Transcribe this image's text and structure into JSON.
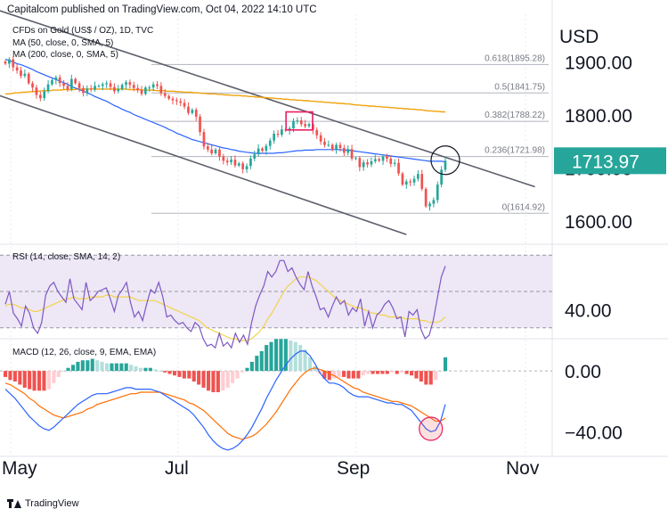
{
  "header": {
    "publisher": "Capitalcom published on TradingView.com, Oct 04, 2022 14:10 UTC"
  },
  "footer": {
    "brand": "TradingView"
  },
  "colors": {
    "up": "#26a69a",
    "down": "#ef5350",
    "ma50": "#2962ff",
    "ma200": "#f0a20c",
    "channel": "#5d606b",
    "rsi": "#7e57c2",
    "rsi_ma": "#f2d349",
    "rsi_band": "#ede7f6",
    "macd": "#2962ff",
    "signal": "#ff6d00",
    "fib": "#b2b5be",
    "highlight": "#e91e63",
    "price_tag": "#26a69a"
  },
  "chart_data": [
    {
      "type": "candlestick",
      "title": "CFDs on Gold (US$ / OZ), 1D, TVC",
      "legend": [
        "MA (50, close, 0, SMA, 5)",
        "MA (200, close, 0, SMA, 5)"
      ],
      "currency_label": "USD",
      "x_ticks": [
        "May",
        "Jul",
        "Sep",
        "Nov"
      ],
      "y_ticks": [
        "1900.00",
        "1800.00",
        "1700.00",
        "1600.00"
      ],
      "ylim": [
        1560,
        1990
      ],
      "last_price_label": "1713.97",
      "fib_levels": [
        {
          "label": "0.618(1895.28)",
          "value": 1895.28
        },
        {
          "label": "0.5(1841.75)",
          "value": 1841.75
        },
        {
          "label": "0.382(1788.22)",
          "value": 1788.22
        },
        {
          "label": "0.236(1721.98)",
          "value": 1721.98
        },
        {
          "label": "0(1614.92)",
          "value": 1614.92
        }
      ],
      "close": [
        1897,
        1905,
        1890,
        1884,
        1874,
        1878,
        1860,
        1852,
        1838,
        1832,
        1845,
        1858,
        1866,
        1871,
        1860,
        1855,
        1849,
        1868,
        1860,
        1851,
        1842,
        1850,
        1848,
        1855,
        1855,
        1858,
        1860,
        1853,
        1845,
        1849,
        1857,
        1862,
        1857,
        1851,
        1847,
        1840,
        1852,
        1852,
        1858,
        1855,
        1841,
        1836,
        1831,
        1828,
        1826,
        1823,
        1816,
        1804,
        1810,
        1797,
        1768,
        1741,
        1735,
        1728,
        1735,
        1722,
        1714,
        1711,
        1716,
        1705,
        1709,
        1698,
        1704,
        1718,
        1726,
        1737,
        1733,
        1742,
        1752,
        1765,
        1763,
        1773,
        1771,
        1775,
        1789,
        1790,
        1783,
        1779,
        1783,
        1772,
        1762,
        1750,
        1744,
        1744,
        1735,
        1744,
        1738,
        1729,
        1736,
        1718,
        1719,
        1702,
        1711,
        1707,
        1713,
        1717,
        1714,
        1722,
        1718,
        1708,
        1710,
        1690,
        1669,
        1675,
        1673,
        1680,
        1689,
        1661,
        1628,
        1633,
        1640,
        1669,
        1697,
        1714
      ],
      "ma50": [
        1905,
        1903,
        1900,
        1897,
        1895,
        1892,
        1889,
        1886,
        1882,
        1879,
        1876,
        1873,
        1870,
        1867,
        1864,
        1861,
        1858,
        1854,
        1851,
        1848,
        1845,
        1842,
        1839,
        1835,
        1832,
        1829,
        1826,
        1822,
        1818,
        1815,
        1811,
        1808,
        1805,
        1801,
        1798,
        1795,
        1792,
        1789,
        1786,
        1783,
        1780,
        1777,
        1773,
        1770,
        1766,
        1763,
        1760,
        1757,
        1754,
        1752,
        1750,
        1748,
        1746,
        1744,
        1742,
        1740,
        1738,
        1737,
        1735,
        1734,
        1732,
        1731,
        1730,
        1729,
        1728,
        1728,
        1728,
        1728,
        1728,
        1728,
        1729,
        1729,
        1730,
        1731,
        1732,
        1733,
        1733,
        1734,
        1734,
        1734,
        1735,
        1735,
        1735,
        1735,
        1735,
        1735,
        1735,
        1734,
        1734,
        1733,
        1732,
        1731,
        1730,
        1729,
        1728,
        1727,
        1726,
        1725,
        1724,
        1723,
        1722,
        1721,
        1720,
        1719,
        1718,
        1717,
        1716,
        1715,
        1714,
        1713,
        1713,
        1713,
        1713,
        1712
      ],
      "ma200": [
        1840,
        1840,
        1841,
        1842,
        1842,
        1843,
        1843,
        1844,
        1844,
        1845,
        1845,
        1846,
        1846,
        1846,
        1847,
        1847,
        1847,
        1848,
        1848,
        1848,
        1848,
        1849,
        1849,
        1849,
        1849,
        1849,
        1849,
        1849,
        1849,
        1849,
        1849,
        1849,
        1849,
        1849,
        1849,
        1849,
        1848,
        1848,
        1848,
        1848,
        1847,
        1847,
        1847,
        1847,
        1846,
        1846,
        1846,
        1845,
        1845,
        1845,
        1844,
        1844,
        1843,
        1843,
        1843,
        1842,
        1842,
        1841,
        1841,
        1840,
        1840,
        1840,
        1839,
        1839,
        1838,
        1838,
        1837,
        1837,
        1837,
        1836,
        1836,
        1835,
        1835,
        1834,
        1834,
        1833,
        1833,
        1832,
        1832,
        1831,
        1831,
        1830,
        1830,
        1829,
        1829,
        1828,
        1828,
        1827,
        1827,
        1826,
        1826,
        1825,
        1825,
        1824,
        1824,
        1823,
        1823,
        1822,
        1822,
        1821,
        1821,
        1820,
        1819,
        1819,
        1818,
        1818,
        1817,
        1817,
        1816,
        1816,
        1815,
        1815,
        1814,
        1814,
        1813,
        1813,
        1812,
        1812,
        1811,
        1811,
        1810,
        1810,
        1809,
        1808,
        1808,
        1807,
        1807,
        1806,
        1806
      ]
    },
    {
      "type": "line",
      "title": "RSI (14, close, SMA, 14, 2)",
      "y_ticks": [
        "40.00"
      ],
      "bands": [
        30,
        50,
        70
      ],
      "ylim": [
        25,
        75
      ],
      "rsi": [
        43,
        50,
        38,
        35,
        31,
        42,
        38,
        30,
        27,
        33,
        48,
        53,
        55,
        50,
        47,
        44,
        57,
        46,
        43,
        40,
        55,
        45,
        47,
        50,
        51,
        52,
        46,
        39,
        48,
        51,
        55,
        44,
        36,
        39,
        34,
        43,
        51,
        49,
        55,
        47,
        36,
        37,
        34,
        32,
        33,
        30,
        28,
        33,
        31,
        24,
        20,
        21,
        19,
        27,
        20,
        22,
        19,
        27,
        22,
        26,
        21,
        33,
        42,
        48,
        53,
        61,
        58,
        61,
        67,
        67,
        61,
        63,
        58,
        54,
        51,
        61,
        53,
        47,
        40,
        41,
        36,
        42,
        47,
        43,
        45,
        37,
        41,
        39,
        46,
        31,
        39,
        30,
        37,
        39,
        43,
        45,
        41,
        35,
        36,
        25,
        39,
        37,
        40,
        29,
        24,
        26,
        34,
        46,
        58,
        64
      ],
      "rsi_ma": [
        42,
        43,
        43,
        42,
        41,
        41,
        40,
        39,
        39,
        40,
        41,
        42,
        43,
        44,
        45,
        46,
        46,
        47,
        46,
        46,
        46,
        47,
        47,
        47,
        47,
        48,
        48,
        47,
        47,
        47,
        47,
        47,
        46,
        45,
        45,
        45,
        45,
        45,
        44,
        43,
        42,
        41,
        40,
        39,
        38,
        37,
        36,
        35,
        34,
        32,
        30,
        29,
        28,
        27,
        26,
        25,
        24,
        24,
        23,
        23,
        23,
        24,
        26,
        28,
        31,
        35,
        38,
        42,
        46,
        50,
        53,
        55,
        57,
        58,
        58,
        58,
        57,
        56,
        54,
        52,
        50,
        48,
        46,
        45,
        44,
        43,
        42,
        41,
        41,
        40,
        39,
        38,
        38,
        37,
        37,
        36,
        36,
        36,
        36,
        35,
        35,
        35,
        35,
        34,
        34,
        33,
        33,
        33,
        34,
        36
      ]
    },
    {
      "type": "line",
      "title": "MACD (12, 26, close, 9, EMA, EMA)",
      "y_ticks": [
        "0.00",
        "−40.00"
      ],
      "ylim": [
        -55,
        20
      ],
      "macd": [
        -12,
        -15,
        -18,
        -22,
        -26,
        -30,
        -33,
        -36,
        -38,
        -39,
        -37,
        -34,
        -31,
        -28,
        -25,
        -22,
        -20,
        -18,
        -16,
        -15,
        -15,
        -15,
        -14,
        -13,
        -12,
        -11,
        -11,
        -12,
        -12,
        -12,
        -12,
        -13,
        -14,
        -16,
        -18,
        -20,
        -22,
        -24,
        -26,
        -29,
        -33,
        -37,
        -42,
        -46,
        -49,
        -51,
        -52,
        -51,
        -49,
        -46,
        -42,
        -37,
        -31,
        -25,
        -18,
        -12,
        -6,
        -1,
        4,
        8,
        11,
        13,
        13,
        10,
        5,
        -1,
        -5,
        -8,
        -8,
        -9,
        -11,
        -14,
        -16,
        -17,
        -17,
        -17,
        -18,
        -19,
        -20,
        -21,
        -21,
        -22,
        -22,
        -24,
        -26,
        -30,
        -34,
        -38,
        -40,
        -39,
        -33,
        -22
      ],
      "signal": [
        -8,
        -9,
        -11,
        -13,
        -15,
        -18,
        -20,
        -23,
        -25,
        -27,
        -29,
        -30,
        -31,
        -30,
        -29,
        -28,
        -27,
        -25,
        -24,
        -22,
        -21,
        -20,
        -19,
        -18,
        -17,
        -16,
        -15,
        -15,
        -14,
        -14,
        -14,
        -14,
        -14,
        -15,
        -16,
        -17,
        -18,
        -19,
        -21,
        -22,
        -24,
        -26,
        -29,
        -32,
        -35,
        -38,
        -41,
        -43,
        -44,
        -45,
        -44,
        -43,
        -41,
        -38,
        -35,
        -31,
        -27,
        -22,
        -17,
        -12,
        -8,
        -4,
        -1,
        1,
        2,
        1,
        0,
        -2,
        -3,
        -5,
        -7,
        -9,
        -11,
        -12,
        -14,
        -15,
        -16,
        -17,
        -18,
        -19,
        -20,
        -20,
        -21,
        -22,
        -23,
        -25,
        -27,
        -29,
        -31,
        -33,
        -33,
        -31
      ]
    }
  ]
}
